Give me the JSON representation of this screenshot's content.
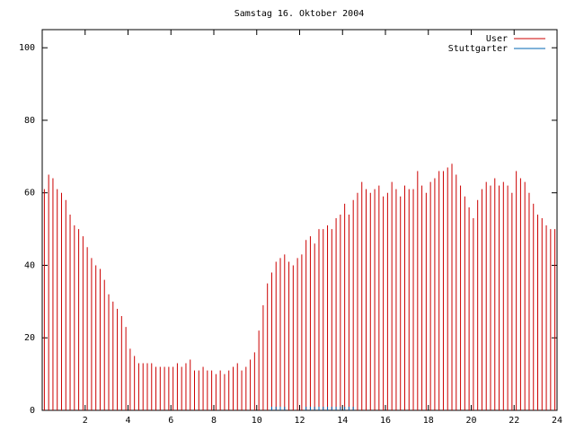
{
  "chart_data": {
    "type": "impulse",
    "title": "Samstag 16. Oktober 2004",
    "x": [
      0.1,
      0.3,
      0.5,
      0.7,
      0.9,
      1.1,
      1.3,
      1.5,
      1.7,
      1.9,
      2.1,
      2.3,
      2.5,
      2.7,
      2.9,
      3.1,
      3.3,
      3.5,
      3.7,
      3.9,
      4.1,
      4.3,
      4.5,
      4.7,
      4.9,
      5.1,
      5.3,
      5.5,
      5.7,
      5.9,
      6.1,
      6.3,
      6.5,
      6.7,
      6.9,
      7.1,
      7.3,
      7.5,
      7.7,
      7.9,
      8.1,
      8.3,
      8.5,
      8.7,
      8.9,
      9.1,
      9.3,
      9.5,
      9.7,
      9.9,
      10.1,
      10.3,
      10.5,
      10.7,
      10.9,
      11.1,
      11.3,
      11.5,
      11.7,
      11.9,
      12.1,
      12.3,
      12.5,
      12.7,
      12.9,
      13.1,
      13.3,
      13.5,
      13.7,
      13.9,
      14.1,
      14.3,
      14.5,
      14.7,
      14.9,
      15.1,
      15.3,
      15.5,
      15.7,
      15.9,
      16.1,
      16.3,
      16.5,
      16.7,
      16.9,
      17.1,
      17.3,
      17.5,
      17.7,
      17.9,
      18.1,
      18.3,
      18.5,
      18.7,
      18.9,
      19.1,
      19.3,
      19.5,
      19.7,
      19.9,
      20.1,
      20.3,
      20.5,
      20.7,
      20.9,
      21.1,
      21.3,
      21.5,
      21.7,
      21.9,
      22.1,
      22.3,
      22.5,
      22.7,
      22.9,
      23.1,
      23.3,
      23.5,
      23.7,
      23.9
    ],
    "series": [
      {
        "name": "User",
        "color": "#cc0000",
        "values": [
          61,
          65,
          64,
          61,
          60,
          58,
          54,
          51,
          50,
          48,
          45,
          42,
          40,
          39,
          36,
          32,
          30,
          28,
          26,
          23,
          17,
          15,
          13,
          13,
          13,
          13,
          12,
          12,
          12,
          12,
          12,
          13,
          12,
          13,
          14,
          11,
          11,
          12,
          11,
          11,
          10,
          11,
          10,
          11,
          12,
          13,
          11,
          12,
          14,
          16,
          22,
          29,
          35,
          38,
          41,
          42,
          43,
          41,
          40,
          42,
          43,
          47,
          48,
          46,
          50,
          50,
          51,
          50,
          53,
          54,
          57,
          54,
          58,
          60,
          63,
          61,
          60,
          61,
          62,
          59,
          60,
          63,
          61,
          59,
          62,
          61,
          61,
          66,
          62,
          60,
          63,
          64,
          66,
          66,
          67,
          68,
          65,
          62,
          59,
          56,
          53,
          58,
          61,
          63,
          62,
          64,
          62,
          63,
          62,
          60,
          66,
          64,
          63,
          60,
          57,
          54,
          53,
          51,
          50,
          50
        ]
      },
      {
        "name": "Stuttgarter",
        "color": "#0066b3",
        "values": [
          null,
          null,
          null,
          null,
          null,
          null,
          null,
          null,
          null,
          null,
          null,
          null,
          null,
          null,
          null,
          null,
          null,
          null,
          null,
          null,
          null,
          null,
          null,
          null,
          null,
          null,
          null,
          null,
          null,
          null,
          null,
          null,
          null,
          null,
          null,
          null,
          null,
          null,
          null,
          null,
          null,
          null,
          null,
          null,
          null,
          null,
          null,
          null,
          null,
          null,
          null,
          null,
          null,
          1,
          1,
          1,
          1,
          null,
          null,
          null,
          null,
          1,
          1,
          1,
          1,
          1,
          1,
          1,
          1,
          1,
          1,
          1,
          1,
          null,
          null,
          null,
          null,
          null,
          null,
          null,
          null,
          null,
          null,
          null,
          null,
          null,
          null,
          null,
          null,
          null,
          null,
          null,
          null,
          null,
          null,
          null,
          null,
          null,
          null,
          null,
          null,
          null,
          null,
          null,
          null,
          null,
          null,
          null,
          null,
          null,
          null,
          null,
          null,
          null,
          null,
          null,
          null,
          null,
          null,
          null
        ]
      }
    ],
    "xlim": [
      0,
      24
    ],
    "xticks": [
      2,
      4,
      6,
      8,
      10,
      12,
      14,
      16,
      18,
      20,
      22,
      24
    ],
    "ylim": [
      0,
      105
    ],
    "yticks": [
      0,
      20,
      40,
      60,
      80,
      100
    ]
  }
}
